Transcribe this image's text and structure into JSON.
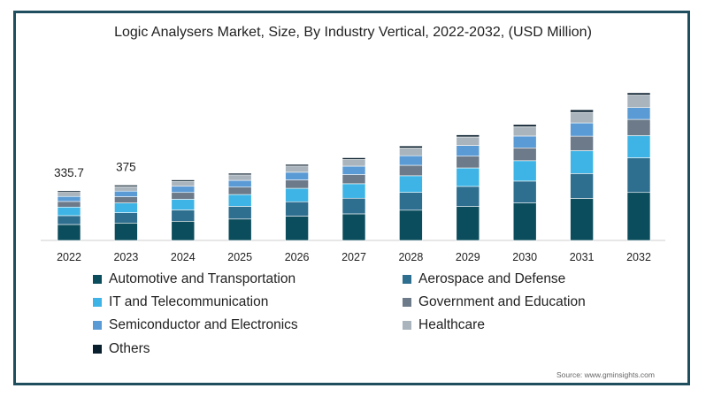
{
  "chart_data": {
    "type": "bar",
    "stacked": true,
    "title": "Logic Analysers Market, Size, By Industry Vertical, 2022-2032, (USD Million)",
    "xlabel": "",
    "ylabel": "",
    "categories": [
      "2022",
      "2023",
      "2024",
      "2025",
      "2026",
      "2027",
      "2028",
      "2029",
      "2030",
      "2031",
      "2032"
    ],
    "totals": [
      335.7,
      375,
      410,
      455,
      515,
      560,
      640,
      715,
      785,
      885,
      1000
    ],
    "data_labels": [
      "335.7",
      "375",
      "",
      "",
      "",
      "",
      "",
      "",
      "",
      "",
      ""
    ],
    "ylim": [
      0,
      1000
    ],
    "grid": false,
    "legend_position": "bottom",
    "series": [
      {
        "name": "Automotive and Transportation",
        "color": "#0b4d5c",
        "values": [
          108,
          118,
          130,
          145,
          165,
          180,
          205,
          230,
          254,
          285,
          325
        ]
      },
      {
        "name": "Aerospace and Defense",
        "color": "#2e6e8e",
        "values": [
          60,
          70,
          77,
          86,
          97,
          106,
          121,
          136,
          148,
          168,
          235
        ]
      },
      {
        "name": "IT and Telecommunication",
        "color": "#3db4e5",
        "values": [
          58,
          66,
          72,
          80,
          91,
          98,
          112,
          125,
          138,
          155,
          150
        ]
      },
      {
        "name": "Government and Education",
        "color": "#6c7a89",
        "values": [
          38,
          42,
          46,
          50,
          57,
          62,
          71,
          80,
          87,
          98,
          110
        ]
      },
      {
        "name": "Semiconductor and Electronics",
        "color": "#5b9bd5",
        "values": [
          34,
          38,
          42,
          46,
          52,
          57,
          65,
          72,
          80,
          90,
          80
        ]
      },
      {
        "name": "Healthcare",
        "color": "#a9b4bd",
        "values": [
          28,
          31,
          33,
          37,
          42,
          45,
          52,
          58,
          63,
          72,
          85
        ]
      },
      {
        "name": "Others",
        "color": "#0a1f2e",
        "values": [
          9.7,
          10,
          10,
          11,
          11,
          12,
          14,
          14,
          15,
          17,
          15
        ]
      }
    ]
  },
  "source_text": "Source: www.gminsights.com"
}
